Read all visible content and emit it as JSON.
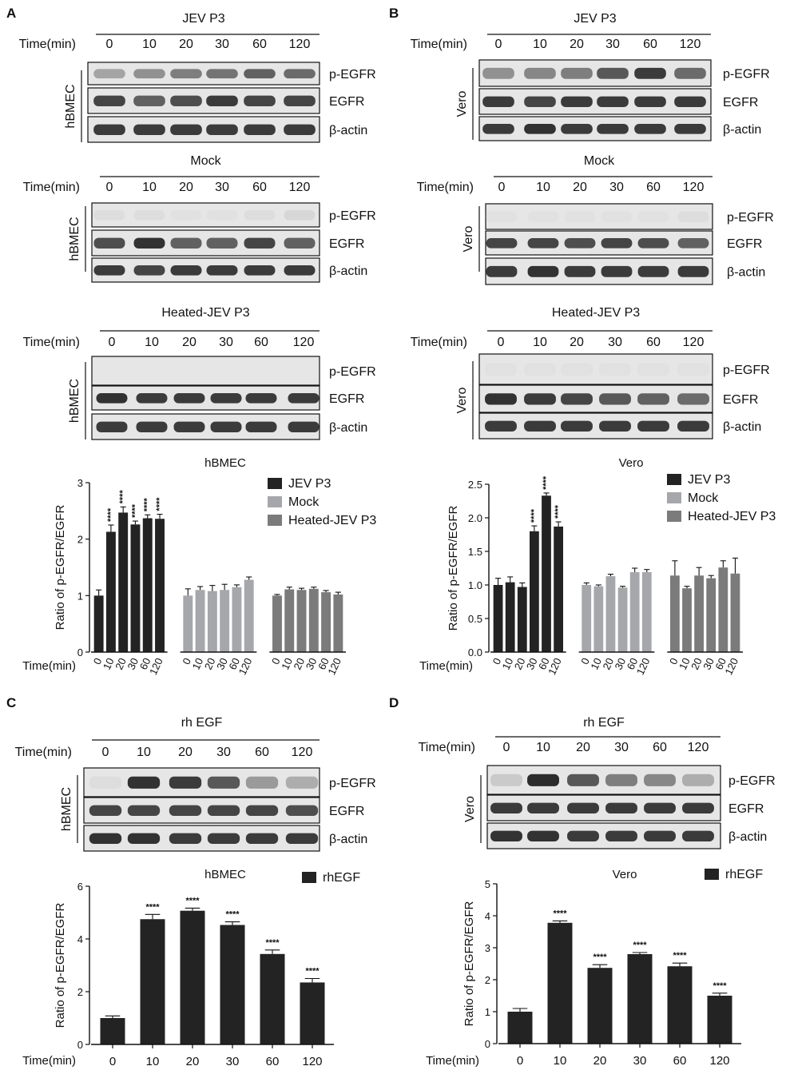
{
  "figure": {
    "panels": [
      "A",
      "B",
      "C",
      "D"
    ],
    "time_label": "Time(min)",
    "times": [
      "0",
      "10",
      "20",
      "30",
      "60",
      "120"
    ],
    "band_labels": [
      "p-EGFR",
      "EGFR",
      "β-actin"
    ],
    "cell_lines": {
      "hbmec": "hBMEC",
      "vero": "Vero"
    },
    "conditions": {
      "jev": "JEV P3",
      "mock": "Mock",
      "heated": "Heated-JEV P3",
      "rhegf": "rh EGF"
    },
    "significance": "****"
  },
  "chart_data": [
    {
      "panel": "A",
      "type": "bar",
      "title": "hBMEC",
      "ylabel": "Ratio of p-EGFR/EGFR",
      "xlabel": "Time(min)",
      "ylim": [
        0,
        3
      ],
      "yticks": [
        "0",
        "1",
        "2",
        "3"
      ],
      "categories": [
        "0",
        "10",
        "20",
        "30",
        "60",
        "120"
      ],
      "legend_position": "top-right",
      "series": [
        {
          "name": "JEV P3",
          "color": "#232323",
          "values": [
            1.0,
            2.13,
            2.47,
            2.26,
            2.37,
            2.36
          ],
          "errors": [
            0.1,
            0.12,
            0.1,
            0.06,
            0.06,
            0.08
          ],
          "sig": [
            "",
            "****",
            "****",
            "****",
            "****",
            "****"
          ]
        },
        {
          "name": "Mock",
          "color": "#a5a7ab",
          "values": [
            1.0,
            1.1,
            1.08,
            1.1,
            1.15,
            1.28
          ],
          "errors": [
            0.12,
            0.06,
            0.1,
            0.1,
            0.04,
            0.05
          ],
          "sig": [
            "",
            "",
            "",
            "",
            "",
            ""
          ]
        },
        {
          "name": "Heated-JEV P3",
          "color": "#7b7b7b",
          "values": [
            1.0,
            1.11,
            1.1,
            1.12,
            1.06,
            1.02
          ],
          "errors": [
            0.02,
            0.04,
            0.03,
            0.03,
            0.03,
            0.04
          ],
          "sig": [
            "",
            "",
            "",
            "",
            "",
            ""
          ]
        }
      ]
    },
    {
      "panel": "B",
      "type": "bar",
      "title": "Vero",
      "ylabel": "Ratio of p-EGFR/EGFR",
      "xlabel": "Time(min)",
      "ylim": [
        0,
        2.5
      ],
      "yticks": [
        "0.0",
        "0.5",
        "1.0",
        "1.5",
        "2.0",
        "2.5"
      ],
      "categories": [
        "0",
        "10",
        "20",
        "30",
        "60",
        "120"
      ],
      "legend_position": "top-right",
      "series": [
        {
          "name": "JEV P3",
          "color": "#232323",
          "values": [
            1.0,
            1.04,
            0.97,
            1.8,
            2.33,
            1.87
          ],
          "errors": [
            0.1,
            0.08,
            0.06,
            0.08,
            0.04,
            0.07
          ],
          "sig": [
            "",
            "",
            "",
            "****",
            "****",
            "****"
          ]
        },
        {
          "name": "Mock",
          "color": "#a5a7ab",
          "values": [
            1.0,
            0.98,
            1.13,
            0.96,
            1.19,
            1.19
          ],
          "errors": [
            0.03,
            0.02,
            0.03,
            0.02,
            0.06,
            0.04
          ],
          "sig": [
            "",
            "",
            "",
            "",
            "",
            ""
          ]
        },
        {
          "name": "Heated-JEV P3",
          "color": "#7b7b7b",
          "values": [
            1.14,
            0.95,
            1.14,
            1.1,
            1.26,
            1.17
          ],
          "errors": [
            0.22,
            0.03,
            0.12,
            0.04,
            0.1,
            0.23
          ],
          "sig": [
            "",
            "",
            "",
            "",
            "",
            ""
          ]
        }
      ]
    },
    {
      "panel": "C",
      "type": "bar",
      "title": "hBMEC",
      "ylabel": "Ratio of p-EGFR/EGFR",
      "xlabel": "Time(min)",
      "ylim": [
        0,
        6
      ],
      "yticks": [
        "0",
        "2",
        "4",
        "6"
      ],
      "categories": [
        "0",
        "10",
        "20",
        "30",
        "60",
        "120"
      ],
      "legend_position": "top-right",
      "series": [
        {
          "name": "rhEGF",
          "color": "#232323",
          "values": [
            1.0,
            4.75,
            5.07,
            4.53,
            3.43,
            2.35
          ],
          "errors": [
            0.08,
            0.18,
            0.1,
            0.12,
            0.15,
            0.15
          ],
          "sig": [
            "",
            "****",
            "****",
            "****",
            "****",
            "****"
          ]
        }
      ]
    },
    {
      "panel": "D",
      "type": "bar",
      "title": "Vero",
      "ylabel": "Ratio of p-EGFR/EGFR",
      "xlabel": "Time(min)",
      "ylim": [
        0,
        5
      ],
      "yticks": [
        "0",
        "1",
        "2",
        "3",
        "4",
        "5"
      ],
      "categories": [
        "0",
        "10",
        "20",
        "30",
        "60",
        "120"
      ],
      "legend_position": "top-right",
      "series": [
        {
          "name": "rhEGF",
          "color": "#232323",
          "values": [
            1.0,
            3.78,
            2.37,
            2.8,
            2.42,
            1.5
          ],
          "errors": [
            0.1,
            0.06,
            0.1,
            0.05,
            0.1,
            0.08
          ],
          "sig": [
            "",
            "****",
            "****",
            "****",
            "****",
            "****"
          ]
        }
      ]
    }
  ]
}
